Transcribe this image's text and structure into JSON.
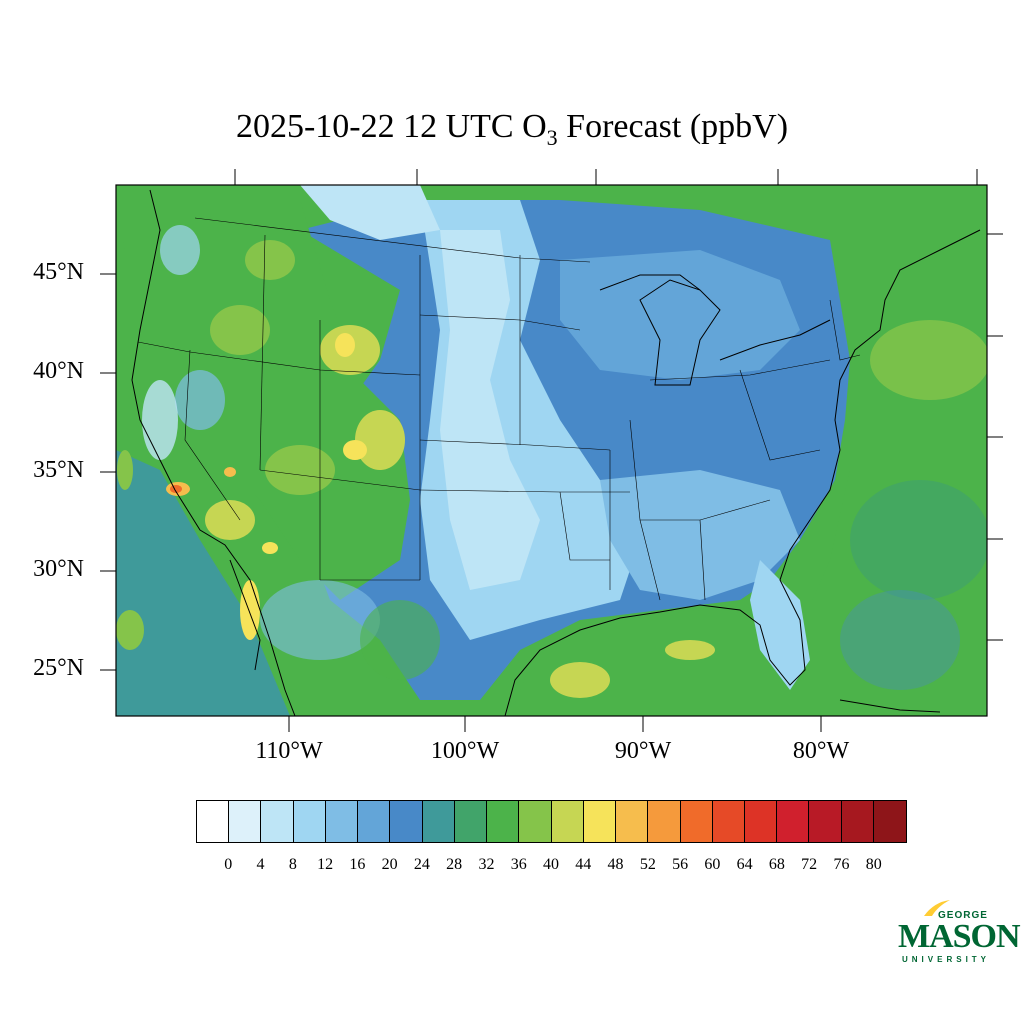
{
  "title": {
    "prefix": "2025-10-22 12 UTC O",
    "subscript": "3",
    "suffix": " Forecast (ppbV)"
  },
  "lat_labels": [
    "45°N",
    "40°N",
    "35°N",
    "30°N",
    "25°N"
  ],
  "lon_labels": [
    "110°W",
    "100°W",
    "90°W",
    "80°W"
  ],
  "colorbar": {
    "levels": [
      "0",
      "4",
      "8",
      "12",
      "16",
      "20",
      "24",
      "28",
      "32",
      "36",
      "40",
      "44",
      "48",
      "52",
      "56",
      "60",
      "64",
      "68",
      "72",
      "76",
      "80"
    ],
    "colors": [
      "#ffffff",
      "#ddf1fa",
      "#bee5f6",
      "#9fd6f2",
      "#7fbde5",
      "#63a5d8",
      "#4889c8",
      "#3f9a9a",
      "#41a46a",
      "#4cb34a",
      "#85c44a",
      "#c6d653",
      "#f6e35a",
      "#f6bd4d",
      "#f59a3c",
      "#f06b2a",
      "#e64a27",
      "#dd3326",
      "#d0202d",
      "#b81a26",
      "#a6181f",
      "#8e1519"
    ]
  },
  "logo": {
    "line1": "GEORGE",
    "line2": "MASON",
    "line3": "UNIVERSITY",
    "brand_color": "#006633",
    "accent_color": "#ffcc33"
  },
  "field_colors": {
    "ocean": "#44a46a",
    "plains": "#63a5d8",
    "clean": "#bee5f6",
    "mountain": "#85c44a",
    "high": "#f6e35a",
    "peak": "#f06b2a"
  }
}
